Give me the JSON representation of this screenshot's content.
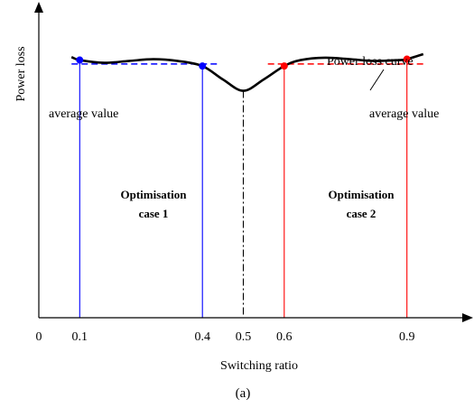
{
  "chart_data": {
    "type": "line",
    "title": "",
    "caption": "(a)",
    "xlabel": "Switching ratio",
    "ylabel": "Power loss",
    "xlim": [
      0,
      1.0
    ],
    "ylim": [
      0,
      1.0
    ],
    "grid": false,
    "x_ticks": [
      {
        "value": 0,
        "label": "0"
      },
      {
        "value": 0.1,
        "label": "0.1"
      },
      {
        "value": 0.4,
        "label": "0.4"
      },
      {
        "value": 0.5,
        "label": "0.5"
      },
      {
        "value": 0.6,
        "label": "0.6"
      },
      {
        "value": 0.9,
        "label": "0.9"
      }
    ],
    "series": [
      {
        "name": "Power loss curve",
        "color": "#000000",
        "x": [
          0.08,
          0.1,
          0.16,
          0.22,
          0.28,
          0.34,
          0.4,
          0.45,
          0.5,
          0.55,
          0.6,
          0.64,
          0.7,
          0.76,
          0.82,
          0.88,
          0.9,
          0.94
        ],
        "y": [
          0.875,
          0.865,
          0.856,
          0.862,
          0.868,
          0.862,
          0.845,
          0.8,
          0.762,
          0.8,
          0.845,
          0.865,
          0.873,
          0.868,
          0.862,
          0.865,
          0.868,
          0.885
        ]
      }
    ],
    "average_lines": [
      {
        "x": [
          0.08,
          0.44
        ],
        "y": 0.852,
        "color": "#0000ff",
        "label": "average value"
      },
      {
        "x": [
          0.56,
          0.94
        ],
        "y": 0.852,
        "color": "#ff0000",
        "label": "average value"
      }
    ],
    "markers": [
      {
        "x": 0.1,
        "y": 0.865,
        "color": "#0000ff"
      },
      {
        "x": 0.4,
        "y": 0.845,
        "color": "#0000ff"
      },
      {
        "x": 0.6,
        "y": 0.845,
        "color": "#ff0000"
      },
      {
        "x": 0.9,
        "y": 0.868,
        "color": "#ff0000"
      }
    ],
    "vertical_lines": [
      {
        "x": 0.1,
        "color": "#0000ff",
        "style": "solid"
      },
      {
        "x": 0.4,
        "color": "#0000ff",
        "style": "solid"
      },
      {
        "x": 0.5,
        "color": "#000000",
        "style": "dashdot"
      },
      {
        "x": 0.6,
        "color": "#ff0000",
        "style": "solid"
      },
      {
        "x": 0.9,
        "color": "#ff0000",
        "style": "solid"
      }
    ],
    "annotations": {
      "curve_label": "Power loss curve",
      "case1_line1": "Optimisation",
      "case1_line2": "case 1",
      "case2_line1": "Optimisation",
      "case2_line2": "case 2"
    }
  }
}
